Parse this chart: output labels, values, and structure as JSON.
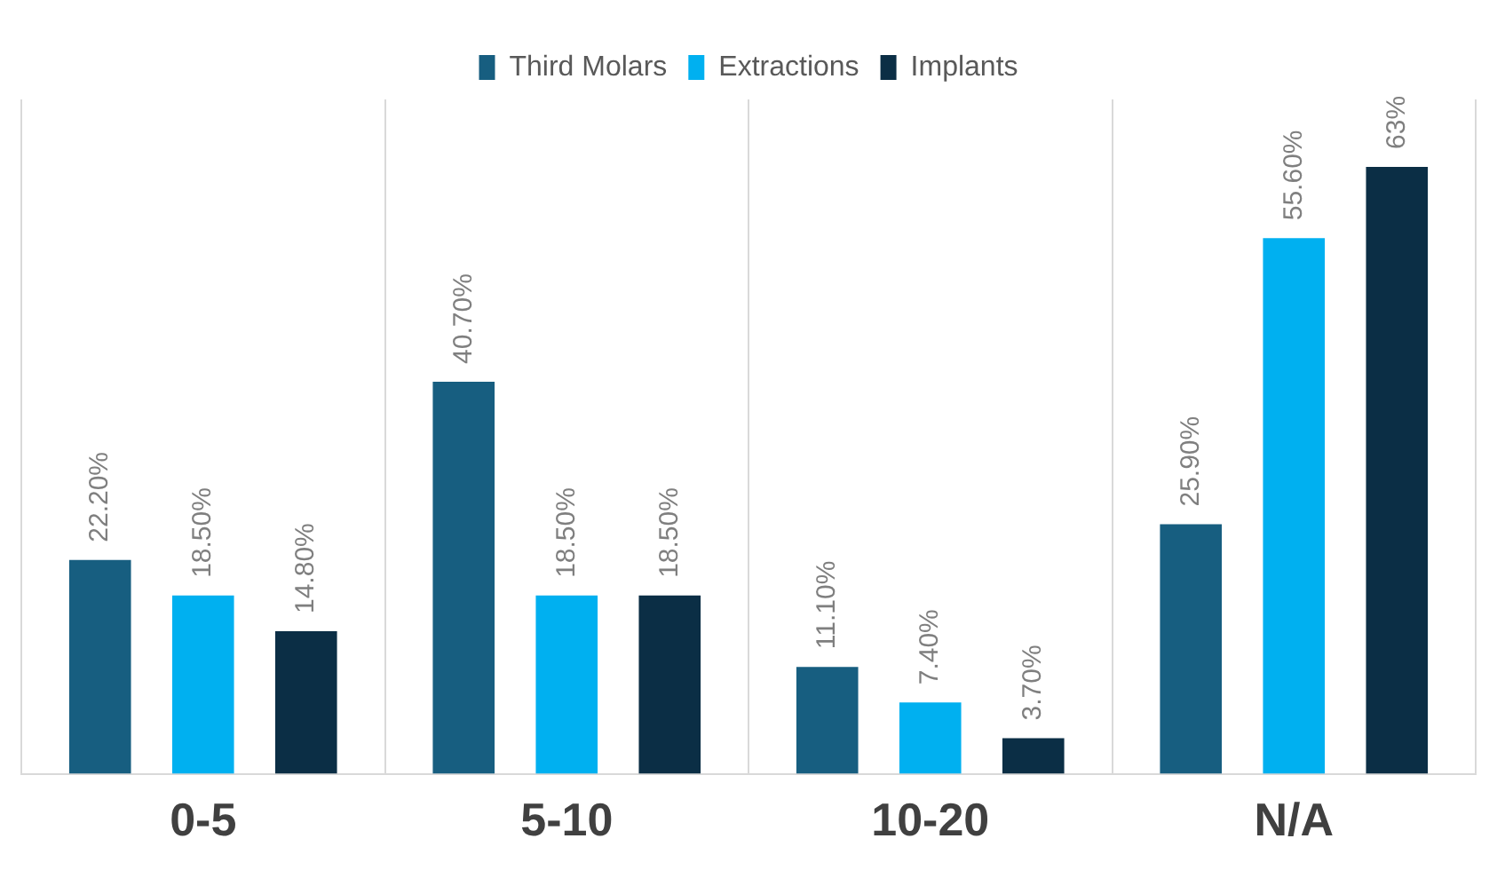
{
  "chart_data": {
    "type": "bar",
    "categories": [
      "0-5",
      "5-10",
      "10-20",
      "N/A"
    ],
    "series": [
      {
        "name": "Third Molars",
        "color": "#175e80",
        "values": [
          22.2,
          40.7,
          11.1,
          25.9
        ],
        "value_labels": [
          "22.20%",
          "40.70%",
          "11.10%",
          "25.90%"
        ]
      },
      {
        "name": "Extractions",
        "color": "#00b0f0",
        "values": [
          18.5,
          18.5,
          7.4,
          55.6
        ],
        "value_labels": [
          "18.50%",
          "18.50%",
          "7.40%",
          "55.60%"
        ]
      },
      {
        "name": "Implants",
        "color": "#0b2e45",
        "values": [
          14.8,
          18.5,
          3.7,
          63
        ],
        "value_labels": [
          "14.80%",
          "18.50%",
          "3.70%",
          "63%"
        ]
      }
    ],
    "grid": "x",
    "legend": "top"
  }
}
